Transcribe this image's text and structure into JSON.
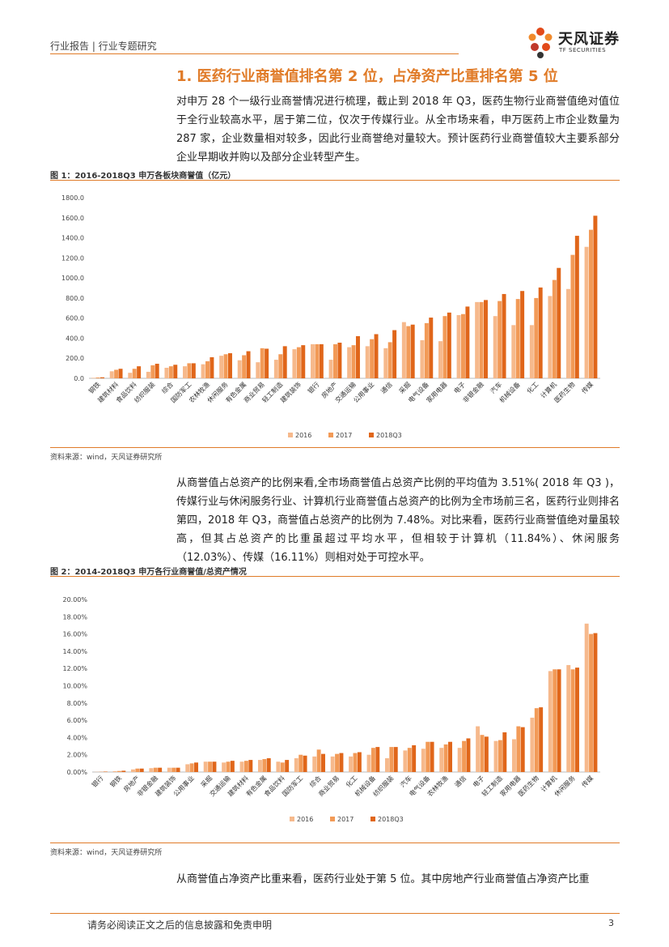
{
  "header": {
    "breadcrumb": "行业报告 | 行业专题研究"
  },
  "logo": {
    "name": "天风证券",
    "sub": "TF SECURITIES"
  },
  "section_title": "1. 医药行业商誉值排名第 2 位，占净资产比重排名第 5 位",
  "paragraphs": [
    "对申万 28 个一级行业商誉情况进行梳理，截止到 2018 年 Q3，医药生物行业商誉值绝对值位于全行业较高水平，居于第二位，仅次于传媒行业。从全市场来看，申万医药上市企业数量为 287 家，企业数量相对较多，因此行业商誉绝对量较大。预计医药行业商誉值较大主要系部分企业早期收并购以及部分企业转型产生。",
    "从商誉值占总资产的比例来看,全市场商誉值占总资产比例的平均值为 3.51%( 2018 年 Q3 )，传媒行业与休闲服务行业、计算机行业商誉值占总资产的比例为全市场前三名，医药行业则排名第四，2018 年 Q3，商誉值占总资产的比例为 7.48%。对比来看，医药行业商誉值绝对量虽较高，但其占总资产的比重虽超过平均水平，但相较于计算机（11.84%）、休闲服务（12.03%）、传媒（16.11%）则相对处于可控水平。",
    "从商誉值占净资产比重来看，医药行业处于第 5 位。其中房地产行业商誉值占净资产比重"
  ],
  "figures": [
    {
      "title": "图 1：2016-2018Q3 申万各板块商誉值（亿元）",
      "source": "资料来源：wind，天风证券研究所"
    },
    {
      "title": "图 2：2014-2018Q3 申万各行业商誉值/总资产情况",
      "source": "资料来源：wind，天风证券研究所"
    }
  ],
  "colors": {
    "accent": "#e07b28",
    "s2016": "#f6b98c",
    "s2017": "#f29a57",
    "s2018": "#e0661a"
  },
  "chart_data": [
    {
      "type": "bar",
      "title": "图 1：2016-2018Q3 申万各板块商誉值（亿元）",
      "categories": [
        "钢铁",
        "建筑材料",
        "食品饮料",
        "纺织服装",
        "综合",
        "国防军工",
        "农林牧渔",
        "休闲服务",
        "有色金属",
        "商业贸易",
        "轻工制造",
        "建筑装饰",
        "银行",
        "房地产",
        "交通运输",
        "公用事业",
        "通信",
        "采掘",
        "电气设备",
        "家用电器",
        "电子",
        "非银金融",
        "汽车",
        "机械设备",
        "化工",
        "计算机",
        "医药生物",
        "传媒"
      ],
      "ylim": [
        0,
        1800
      ],
      "yticks": [
        "0.0",
        "200.0",
        "400.0",
        "600.0",
        "800.0",
        "1000.0",
        "1200.0",
        "1400.0",
        "1600.0",
        "1800.0"
      ],
      "series": [
        {
          "name": "2016",
          "values": [
            5,
            70,
            55,
            65,
            105,
            120,
            140,
            225,
            180,
            160,
            185,
            290,
            340,
            185,
            310,
            320,
            300,
            560,
            380,
            370,
            630,
            760,
            620,
            530,
            530,
            820,
            890,
            1310
          ]
        },
        {
          "name": "2017",
          "values": [
            8,
            85,
            95,
            130,
            120,
            150,
            170,
            240,
            230,
            300,
            240,
            310,
            340,
            340,
            330,
            390,
            360,
            520,
            550,
            620,
            640,
            760,
            770,
            790,
            800,
            980,
            1230,
            1480
          ]
        },
        {
          "name": "2018Q3",
          "values": [
            10,
            95,
            120,
            145,
            135,
            150,
            210,
            250,
            270,
            295,
            320,
            330,
            340,
            355,
            420,
            440,
            480,
            535,
            605,
            655,
            715,
            780,
            840,
            870,
            905,
            1100,
            1420,
            1620
          ]
        }
      ]
    },
    {
      "type": "bar",
      "title": "图 2：2014-2018Q3 申万各行业商誉值/总资产情况",
      "categories": [
        "银行",
        "钢铁",
        "房地产",
        "非银金融",
        "建筑装饰",
        "公用事业",
        "采掘",
        "交通运输",
        "建筑材料",
        "有色金属",
        "食品饮料",
        "国防军工",
        "综合",
        "商业贸易",
        "化工",
        "机械设备",
        "纺织服装",
        "汽车",
        "电气设备",
        "农林牧渔",
        "通信",
        "电子",
        "轻工制造",
        "家用电器",
        "医药生物",
        "计算机",
        "休闲服务",
        "传媒"
      ],
      "ylim": [
        0,
        20
      ],
      "yticks": [
        "0.00%",
        "2.00%",
        "4.00%",
        "6.00%",
        "8.00%",
        "10.00%",
        "12.00%",
        "14.00%",
        "16.00%",
        "18.00%",
        "20.00%"
      ],
      "series": [
        {
          "name": "2016",
          "values": [
            0.02,
            0.1,
            0.3,
            0.45,
            0.5,
            0.9,
            1.2,
            1.1,
            1.2,
            1.4,
            1.2,
            1.6,
            1.8,
            1.8,
            1.8,
            2.0,
            1.6,
            2.5,
            2.7,
            2.8,
            2.8,
            5.3,
            3.6,
            3.8,
            6.3,
            11.7,
            12.4,
            17.2
          ]
        },
        {
          "name": "2017",
          "values": [
            0.03,
            0.12,
            0.4,
            0.5,
            0.5,
            1.0,
            1.2,
            1.2,
            1.3,
            1.5,
            1.1,
            2.0,
            2.6,
            2.1,
            2.2,
            2.8,
            2.9,
            2.8,
            3.5,
            3.2,
            3.6,
            4.3,
            3.7,
            5.3,
            7.4,
            11.9,
            11.9,
            16.0
          ]
        },
        {
          "name": "2018Q3",
          "values": [
            0.05,
            0.15,
            0.4,
            0.5,
            0.5,
            1.1,
            1.2,
            1.3,
            1.4,
            1.6,
            1.4,
            1.9,
            2.1,
            2.2,
            2.3,
            2.9,
            2.9,
            3.1,
            3.5,
            3.5,
            3.9,
            4.1,
            4.6,
            5.2,
            7.5,
            11.9,
            12.1,
            16.1
          ]
        }
      ]
    }
  ],
  "footer": {
    "disclaimer": "请务必阅读正文之后的信息披露和免责申明",
    "page": "3"
  }
}
